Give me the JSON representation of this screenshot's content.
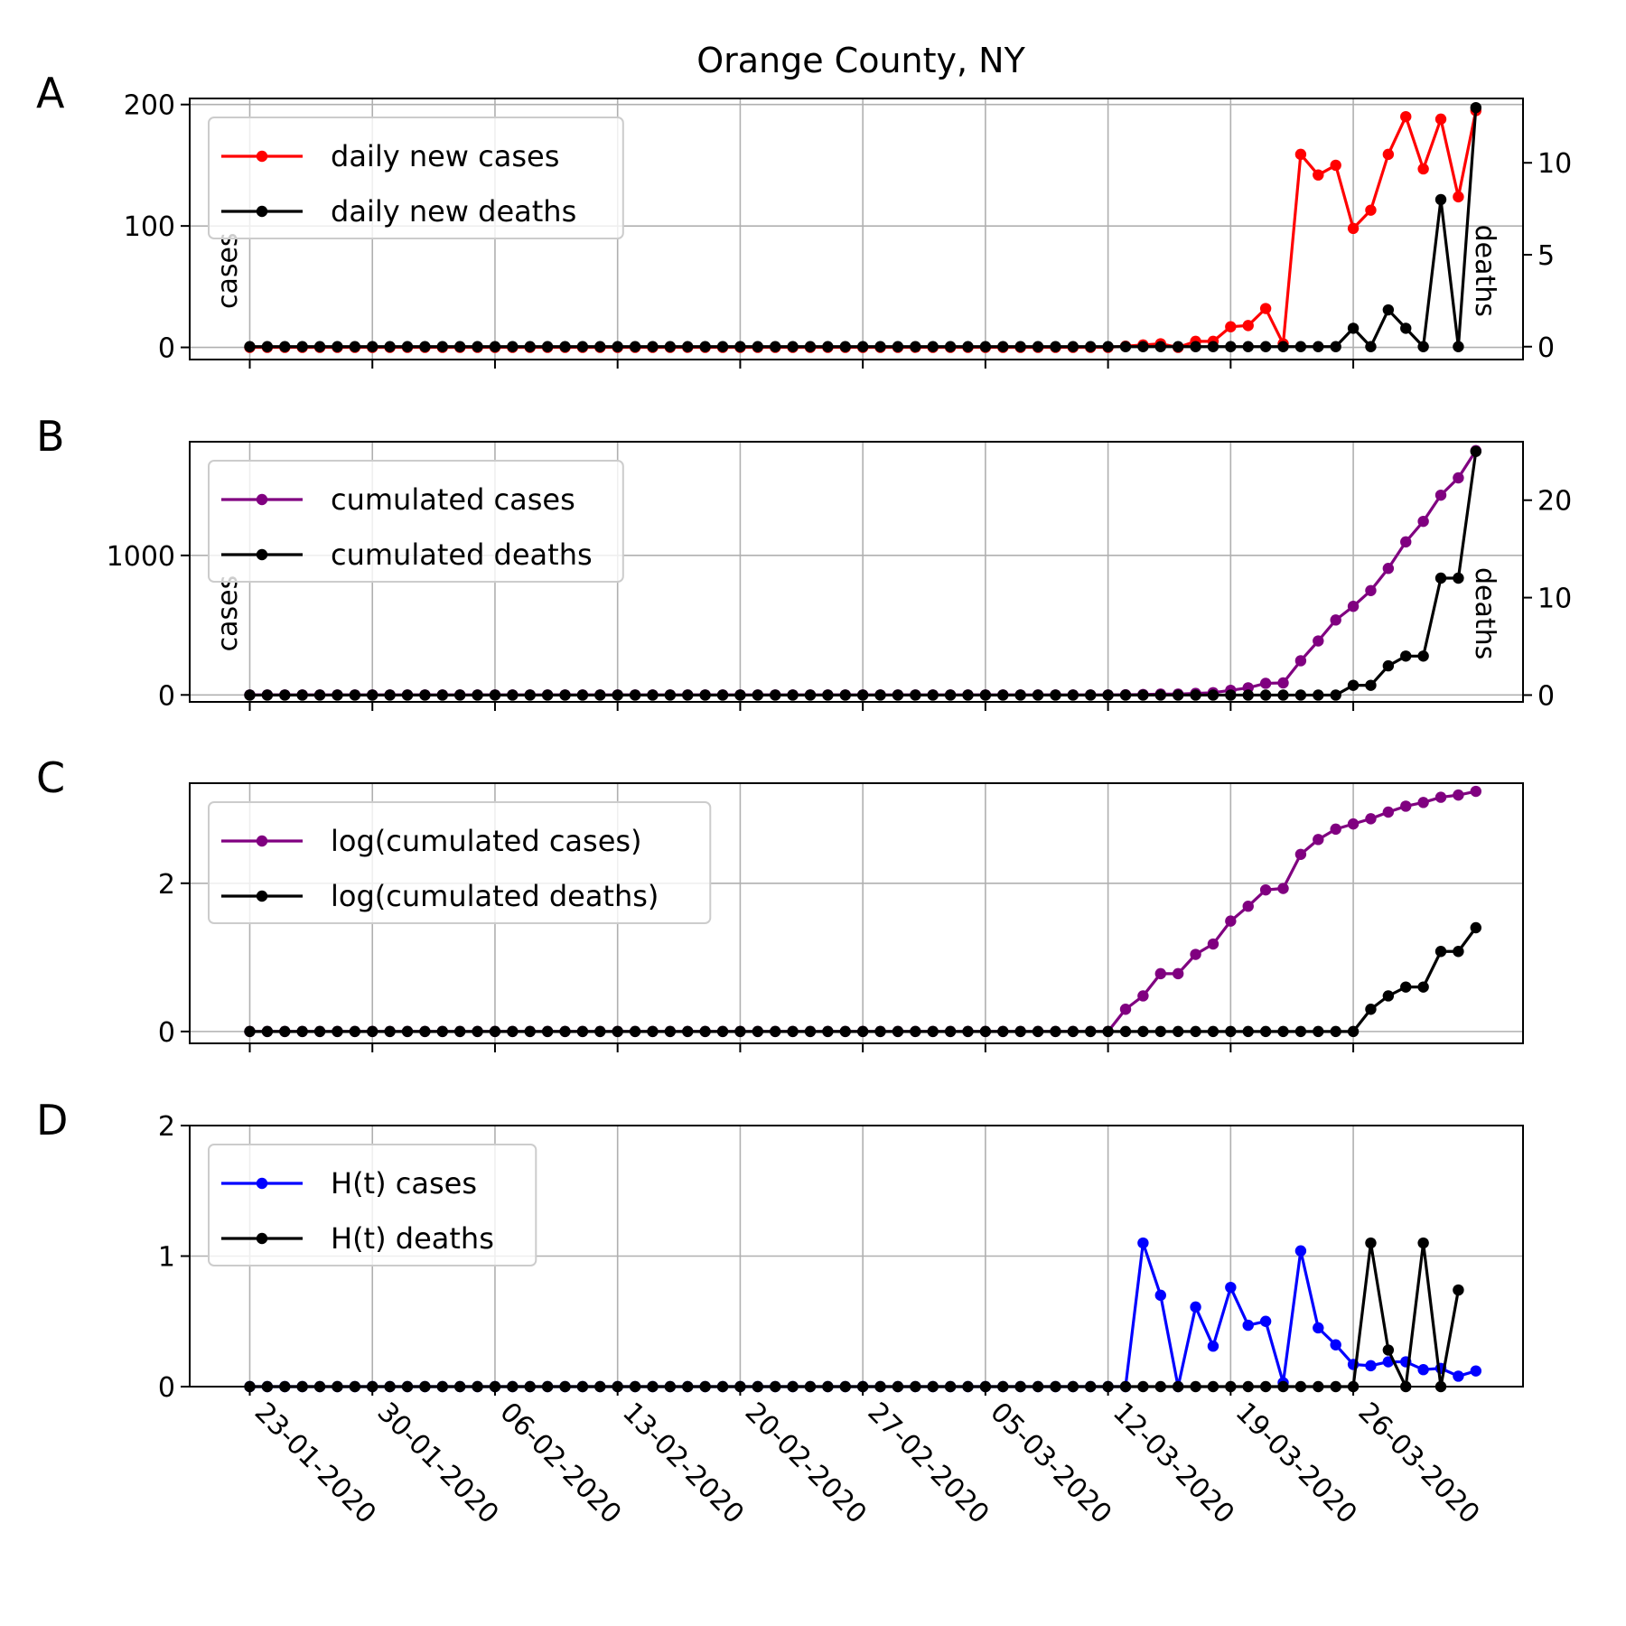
{
  "title": "Orange County, NY",
  "x_tick_labels": [
    "23-01-2020",
    "30-01-2020",
    "06-02-2020",
    "13-02-2020",
    "20-02-2020",
    "27-02-2020",
    "05-03-2020",
    "12-03-2020",
    "19-03-2020",
    "26-03-2020"
  ],
  "chart_data": [
    {
      "panel": "A",
      "type": "line",
      "x_start": "23-01-2020",
      "x_step_days": 1,
      "ylim": [
        -10,
        205
      ],
      "ylabel": "cases",
      "y_ticks": [
        0,
        100,
        200
      ],
      "y2label": "deaths",
      "y2lim": [
        -0.7,
        13.5
      ],
      "y2_ticks": [
        0,
        5,
        10
      ],
      "grid": true,
      "legend": "top-left",
      "series": [
        {
          "name": "daily new cases",
          "color": "#ff0000",
          "axis": "left",
          "values": [
            0,
            0,
            0,
            0,
            0,
            0,
            0,
            0,
            0,
            0,
            0,
            0,
            0,
            0,
            0,
            0,
            0,
            0,
            0,
            0,
            0,
            0,
            0,
            0,
            0,
            0,
            0,
            0,
            0,
            0,
            0,
            0,
            0,
            0,
            0,
            0,
            0,
            0,
            0,
            0,
            0,
            0,
            0,
            0,
            0,
            0,
            0,
            0,
            0,
            0,
            1,
            2,
            3,
            0,
            5,
            5,
            17,
            18,
            32,
            3,
            159,
            142,
            150,
            98,
            113,
            159,
            190,
            147,
            188,
            124,
            195
          ]
        },
        {
          "name": "daily new deaths",
          "color": "#000000",
          "axis": "right",
          "values": [
            0,
            0,
            0,
            0,
            0,
            0,
            0,
            0,
            0,
            0,
            0,
            0,
            0,
            0,
            0,
            0,
            0,
            0,
            0,
            0,
            0,
            0,
            0,
            0,
            0,
            0,
            0,
            0,
            0,
            0,
            0,
            0,
            0,
            0,
            0,
            0,
            0,
            0,
            0,
            0,
            0,
            0,
            0,
            0,
            0,
            0,
            0,
            0,
            0,
            0,
            0,
            0,
            0,
            0,
            0,
            0,
            0,
            0,
            0,
            0,
            0,
            0,
            0,
            1,
            0,
            2,
            1,
            0,
            8,
            0,
            13
          ]
        }
      ]
    },
    {
      "panel": "B",
      "type": "line",
      "x_start": "23-01-2020",
      "x_step_days": 1,
      "ylim": [
        -50,
        1815
      ],
      "ylabel": "cases",
      "y_ticks": [
        0,
        1000
      ],
      "y2label": "deaths",
      "y2lim": [
        -0.7,
        26
      ],
      "y2_ticks": [
        0,
        10,
        20
      ],
      "grid": true,
      "legend": "top-left",
      "series": [
        {
          "name": "cumulated cases",
          "color": "#800080",
          "axis": "left",
          "values": [
            0,
            0,
            0,
            0,
            0,
            0,
            0,
            0,
            0,
            0,
            0,
            0,
            0,
            0,
            0,
            0,
            0,
            0,
            0,
            0,
            0,
            0,
            0,
            0,
            0,
            0,
            0,
            0,
            0,
            0,
            0,
            0,
            0,
            0,
            0,
            0,
            0,
            0,
            0,
            0,
            0,
            0,
            0,
            0,
            0,
            0,
            0,
            0,
            0,
            0,
            1,
            3,
            6,
            6,
            11,
            16,
            33,
            51,
            83,
            86,
            245,
            387,
            537,
            635,
            748,
            907,
            1097,
            1244,
            1432,
            1556,
            1751
          ]
        },
        {
          "name": "cumulated deaths",
          "color": "#000000",
          "axis": "right",
          "values": [
            0,
            0,
            0,
            0,
            0,
            0,
            0,
            0,
            0,
            0,
            0,
            0,
            0,
            0,
            0,
            0,
            0,
            0,
            0,
            0,
            0,
            0,
            0,
            0,
            0,
            0,
            0,
            0,
            0,
            0,
            0,
            0,
            0,
            0,
            0,
            0,
            0,
            0,
            0,
            0,
            0,
            0,
            0,
            0,
            0,
            0,
            0,
            0,
            0,
            0,
            0,
            0,
            0,
            0,
            0,
            0,
            0,
            0,
            0,
            0,
            0,
            0,
            0,
            1,
            1,
            3,
            4,
            4,
            12,
            12,
            25
          ]
        }
      ]
    },
    {
      "panel": "C",
      "type": "line",
      "x_start": "23-01-2020",
      "x_step_days": 1,
      "ylim": [
        -0.16,
        3.35
      ],
      "y_ticks": [
        0,
        2
      ],
      "grid": true,
      "legend": "top-left",
      "series": [
        {
          "name": "log(cumulated cases)",
          "color": "#800080",
          "values": [
            0,
            0,
            0,
            0,
            0,
            0,
            0,
            0,
            0,
            0,
            0,
            0,
            0,
            0,
            0,
            0,
            0,
            0,
            0,
            0,
            0,
            0,
            0,
            0,
            0,
            0,
            0,
            0,
            0,
            0,
            0,
            0,
            0,
            0,
            0,
            0,
            0,
            0,
            0,
            0,
            0,
            0,
            0,
            0,
            0,
            0,
            0,
            0,
            0,
            0,
            0.3,
            0.48,
            0.78,
            0.78,
            1.04,
            1.18,
            1.49,
            1.69,
            1.91,
            1.93,
            2.39,
            2.59,
            2.73,
            2.8,
            2.87,
            2.96,
            3.04,
            3.09,
            3.16,
            3.19,
            3.24
          ]
        },
        {
          "name": "log(cumulated deaths)",
          "color": "#000000",
          "values": [
            0,
            0,
            0,
            0,
            0,
            0,
            0,
            0,
            0,
            0,
            0,
            0,
            0,
            0,
            0,
            0,
            0,
            0,
            0,
            0,
            0,
            0,
            0,
            0,
            0,
            0,
            0,
            0,
            0,
            0,
            0,
            0,
            0,
            0,
            0,
            0,
            0,
            0,
            0,
            0,
            0,
            0,
            0,
            0,
            0,
            0,
            0,
            0,
            0,
            0,
            0,
            0,
            0,
            0,
            0,
            0,
            0,
            0,
            0,
            0,
            0,
            0,
            0,
            0,
            0.3,
            0.48,
            0.6,
            0.6,
            1.08,
            1.08,
            1.4
          ]
        }
      ]
    },
    {
      "panel": "D",
      "type": "line",
      "x_start": "23-01-2020",
      "x_step_days": 1,
      "ylim": [
        0,
        2
      ],
      "y_ticks": [
        0,
        1,
        2
      ],
      "grid": true,
      "legend": "top-left",
      "series": [
        {
          "name": "H(t) cases",
          "color": "#0000ff",
          "values": [
            0,
            0,
            0,
            0,
            0,
            0,
            0,
            0,
            0,
            0,
            0,
            0,
            0,
            0,
            0,
            0,
            0,
            0,
            0,
            0,
            0,
            0,
            0,
            0,
            0,
            0,
            0,
            0,
            0,
            0,
            0,
            0,
            0,
            0,
            0,
            0,
            0,
            0,
            0,
            0,
            0,
            0,
            0,
            0,
            0,
            0,
            0,
            0,
            0,
            0,
            0,
            1.1,
            0.7,
            0,
            0.61,
            0.31,
            0.76,
            0.47,
            0.5,
            0.03,
            1.04,
            0.45,
            0.32,
            0.17,
            0.16,
            0.19,
            0.19,
            0.13,
            0.14,
            0.08,
            0.12
          ]
        },
        {
          "name": "H(t) deaths",
          "color": "#000000",
          "values": [
            0,
            0,
            0,
            0,
            0,
            0,
            0,
            0,
            0,
            0,
            0,
            0,
            0,
            0,
            0,
            0,
            0,
            0,
            0,
            0,
            0,
            0,
            0,
            0,
            0,
            0,
            0,
            0,
            0,
            0,
            0,
            0,
            0,
            0,
            0,
            0,
            0,
            0,
            0,
            0,
            0,
            0,
            0,
            0,
            0,
            0,
            0,
            0,
            0,
            0,
            0,
            0,
            0,
            0,
            0,
            0,
            0,
            0,
            0,
            0,
            0,
            0,
            0,
            0,
            1.1,
            0.28,
            0,
            1.1,
            0,
            0.74
          ]
        }
      ]
    }
  ]
}
